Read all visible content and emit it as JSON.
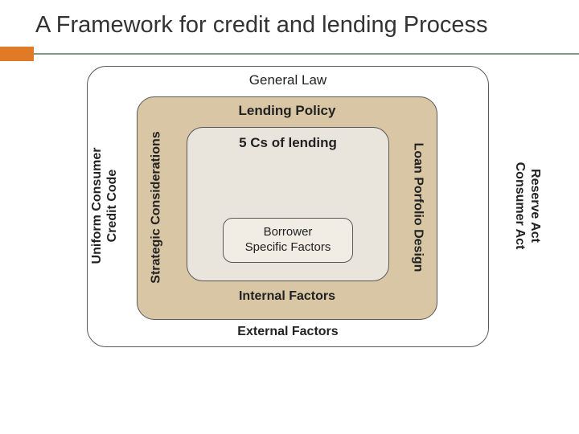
{
  "title": "A Framework for credit and lending Process",
  "accent": {
    "orange": "#e07a27",
    "line": "#7f997f"
  },
  "outer": {
    "label": "General Law",
    "bg": "#ffffff",
    "left": "Uniform Consumer\nCredit Code",
    "right": "Reserve Act\nConsumer Act"
  },
  "mid": {
    "label": "Lending Policy",
    "bg": "#d9c6a5",
    "left": "Strategic Considerations",
    "right": "Loan Porfolio Design"
  },
  "inner": {
    "label": "5 Cs of lending",
    "bg": "#e9e4dc",
    "borrower": "Borrower\nSpecific Factors",
    "borrower_bg": "#f1ece4"
  },
  "footers": {
    "internal": "Internal Factors",
    "external": "External Factors"
  },
  "border_color": "#595959",
  "text_color": "#222222"
}
